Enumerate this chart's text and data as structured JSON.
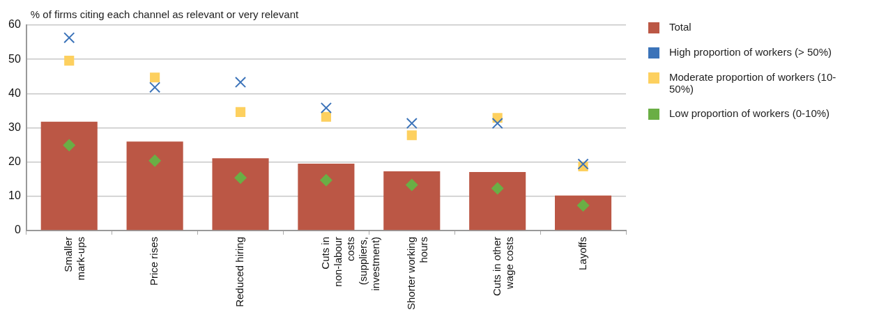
{
  "chart_data": {
    "type": "bar",
    "ylabel": "% of firms citing each channel as relevant or very relevant",
    "categories": [
      "Smaller mark-ups",
      "Price rises",
      "Reduced hiring",
      "Cuts in non-labour costs (suppliers, investment)",
      "Shorter working hours",
      "Cuts in other wage costs",
      "Layoffs"
    ],
    "series": [
      {
        "name": "Total",
        "color": "#bb5745",
        "values": [
          31.8,
          26.0,
          21.1,
          19.5,
          17.3,
          17.1,
          10.2
        ]
      },
      {
        "name": "High proportion of workers (> 50%)",
        "type": "scatter",
        "marker": "cross",
        "color": "#3b73b9",
        "values": [
          56.3,
          41.8,
          43.3,
          35.8,
          31.3,
          31.3,
          19.4
        ]
      },
      {
        "name": "Moderate proportion of workers (10-50%)",
        "type": "scatter",
        "marker": "square",
        "color": "#fdd05f",
        "values": [
          49.6,
          44.7,
          34.6,
          33.2,
          27.8,
          32.9,
          18.7
        ]
      },
      {
        "name": "Low proportion of workers (0-10%)",
        "type": "scatter",
        "marker": "diamond",
        "color": "#6aae45",
        "values": [
          24.9,
          20.4,
          15.4,
          14.7,
          13.3,
          12.3,
          7.3
        ]
      }
    ],
    "ylim": [
      0,
      60
    ],
    "yticks": [
      0,
      10,
      20,
      30,
      40,
      50,
      60
    ],
    "grid": "y",
    "legend": "right"
  }
}
